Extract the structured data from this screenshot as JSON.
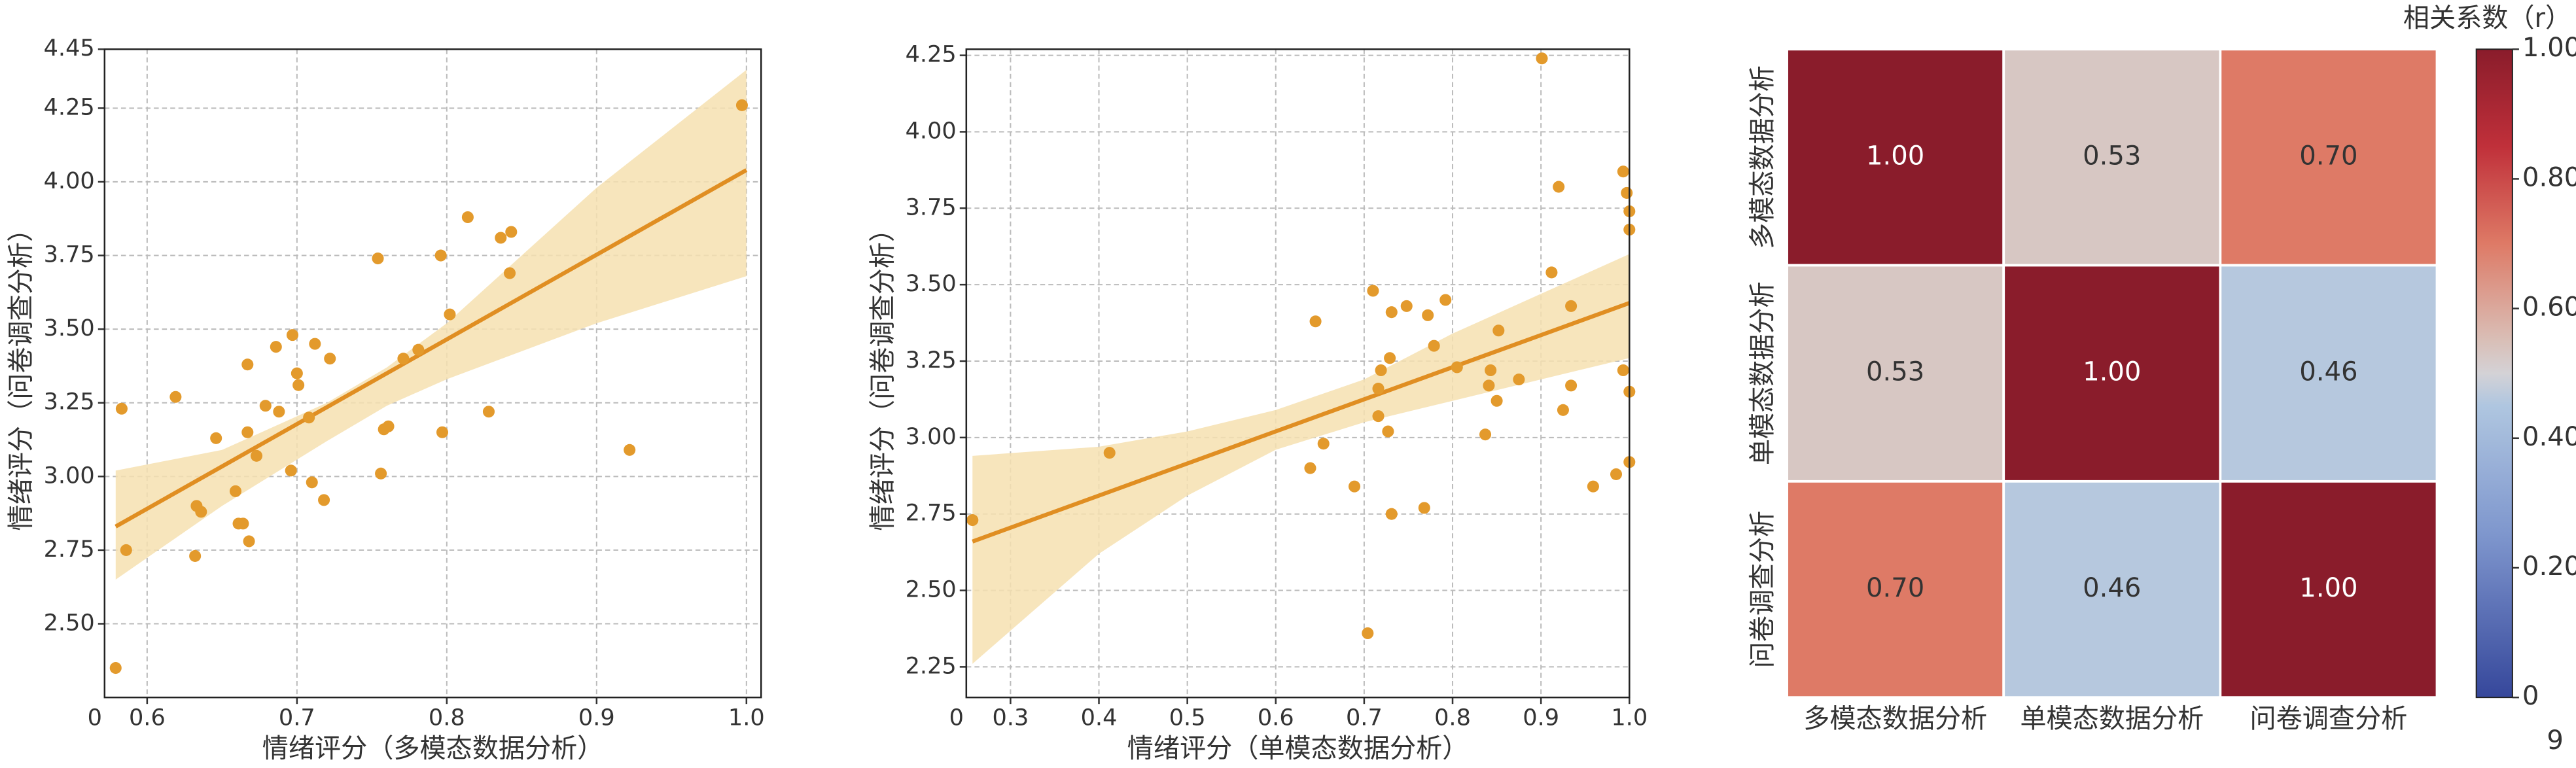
{
  "page_number": "9",
  "chart_data": [
    {
      "type": "scatter",
      "x_label": "情绪评分（多模态数据分析）",
      "y_label": "情绪评分（问卷调查分析）",
      "corner_label": "0",
      "xlim": [
        0.5716,
        1.0098
      ],
      "ylim": [
        2.25,
        4.45
      ],
      "xticks": [
        {
          "value": 0.6,
          "label": "0.6"
        },
        {
          "value": 0.7,
          "label": "0.7"
        },
        {
          "value": 0.8,
          "label": "0.8"
        },
        {
          "value": 0.9,
          "label": "0.9"
        },
        {
          "value": 1.0,
          "label": "1.0"
        }
      ],
      "yticks": [
        {
          "value": 2.5,
          "label": "2.50"
        },
        2.75,
        {
          "value": 3.0,
          "label": "3.00"
        },
        3.25,
        {
          "value": 3.5,
          "label": "3.50"
        },
        3.75,
        {
          "value": 4.0,
          "label": "4.00"
        },
        4.25,
        4.45
      ],
      "grid": true,
      "color": "#E39A2C",
      "x": [
        0.579,
        0.583,
        0.586,
        0.619,
        0.633,
        0.636,
        0.632,
        0.646,
        0.659,
        0.661,
        0.664,
        0.667,
        0.667,
        0.668,
        0.673,
        0.679,
        0.686,
        0.688,
        0.696,
        0.697,
        0.7,
        0.701,
        0.708,
        0.71,
        0.712,
        0.718,
        0.722,
        0.754,
        0.756,
        0.758,
        0.761,
        0.771,
        0.781,
        0.796,
        0.797,
        0.802,
        0.814,
        0.828,
        0.836,
        0.843,
        0.842,
        0.922,
        0.997
      ],
      "values": [
        2.35,
        3.23,
        2.75,
        3.27,
        2.9,
        2.88,
        2.73,
        3.13,
        2.95,
        2.84,
        2.84,
        3.15,
        3.38,
        2.78,
        3.07,
        3.24,
        3.44,
        3.22,
        3.02,
        3.48,
        3.35,
        3.31,
        3.2,
        2.98,
        3.45,
        2.92,
        3.4,
        3.74,
        3.01,
        3.16,
        3.17,
        3.4,
        3.43,
        3.75,
        3.15,
        3.55,
        3.88,
        3.22,
        3.81,
        3.83,
        3.69,
        3.09,
        4.26
      ],
      "fit": {
        "color": "#E08E22",
        "x": [
          0.579,
          1.0
        ],
        "values": [
          2.83,
          4.04
        ]
      },
      "band": {
        "color": "#F6E0B0",
        "x": [
          0.579,
          0.65,
          0.72,
          0.76,
          0.8,
          0.9,
          1.0
        ],
        "lower": [
          2.65,
          2.9,
          3.12,
          3.24,
          3.33,
          3.52,
          3.68
        ],
        "upper": [
          3.02,
          3.09,
          3.25,
          3.37,
          3.52,
          3.98,
          4.38
        ]
      }
    },
    {
      "type": "scatter",
      "x_label": "情绪评分（单模态数据分析）",
      "y_label": "情绪评分（问卷调查分析）",
      "corner_label": "0",
      "xlim": [
        0.25,
        1.0
      ],
      "ylim": [
        2.15,
        4.27
      ],
      "xticks": [
        0.3,
        0.4,
        0.5,
        0.6,
        0.7,
        0.8,
        0.9,
        {
          "value": 1.0,
          "label": "1.0"
        }
      ],
      "yticks": [
        2.25,
        {
          "value": 2.5,
          "label": "2.50"
        },
        2.75,
        {
          "value": 3.0,
          "label": "3.00"
        },
        3.25,
        {
          "value": 3.5,
          "label": "3.50"
        },
        3.75,
        {
          "value": 4.0,
          "label": "4.00"
        },
        4.25
      ],
      "grid": true,
      "color": "#E39A2C",
      "x": [
        0.257,
        0.412,
        0.645,
        0.639,
        0.654,
        0.689,
        0.704,
        0.71,
        0.716,
        0.719,
        0.716,
        0.727,
        0.729,
        0.731,
        0.731,
        0.748,
        0.768,
        0.772,
        0.779,
        0.792,
        0.805,
        0.837,
        0.841,
        0.843,
        0.85,
        0.852,
        0.875,
        0.901,
        0.912,
        0.92,
        0.925,
        0.934,
        0.934,
        0.959,
        0.985,
        0.993,
        0.993,
        0.997,
        1.0,
        1.0,
        1.0,
        1.0
      ],
      "values": [
        2.73,
        2.95,
        3.38,
        2.9,
        2.98,
        2.84,
        2.36,
        3.48,
        3.16,
        3.22,
        3.07,
        3.02,
        3.26,
        2.75,
        3.41,
        3.43,
        2.77,
        3.4,
        3.3,
        3.45,
        3.23,
        3.01,
        3.17,
        3.22,
        3.12,
        3.35,
        3.19,
        4.24,
        3.54,
        3.82,
        3.09,
        3.17,
        3.43,
        2.84,
        2.88,
        3.22,
        3.87,
        3.8,
        3.74,
        3.68,
        3.15,
        2.92
      ],
      "fit": {
        "color": "#E08E22",
        "x": [
          0.257,
          1.0
        ],
        "values": [
          2.66,
          3.44
        ]
      },
      "band": {
        "color": "#F6E0B0",
        "x": [
          0.257,
          0.4,
          0.5,
          0.6,
          0.7,
          0.8,
          0.9,
          1.0
        ],
        "lower": [
          2.26,
          2.62,
          2.81,
          2.96,
          3.05,
          3.12,
          3.19,
          3.26
        ],
        "upper": [
          2.94,
          2.97,
          3.02,
          3.09,
          3.19,
          3.34,
          3.47,
          3.6
        ]
      }
    },
    {
      "type": "heatmap",
      "colorbar_label": "相关系数（r）",
      "colormap": "coolwarm",
      "categories": [
        "多模态数据分析",
        "单模态数据分析",
        "问卷调查分析"
      ],
      "values": [
        [
          1.0,
          0.53,
          0.7
        ],
        [
          0.53,
          1.0,
          0.46
        ],
        [
          0.7,
          0.46,
          1.0
        ]
      ],
      "value_labels": [
        [
          "1.00",
          "0.53",
          "0.70"
        ],
        [
          "0.53",
          "1.00",
          "0.46"
        ],
        [
          "0.70",
          "0.46",
          "1.00"
        ]
      ],
      "clim": [
        0,
        1
      ],
      "cticks": [
        0,
        {
          "value": 0.2,
          "label": "0.20"
        },
        {
          "value": 0.4,
          "label": "0.40"
        },
        {
          "value": 0.6,
          "label": "0.60"
        },
        {
          "value": 0.8,
          "label": "0.80"
        },
        {
          "value": 1.0,
          "label": "1.00"
        }
      ]
    }
  ]
}
